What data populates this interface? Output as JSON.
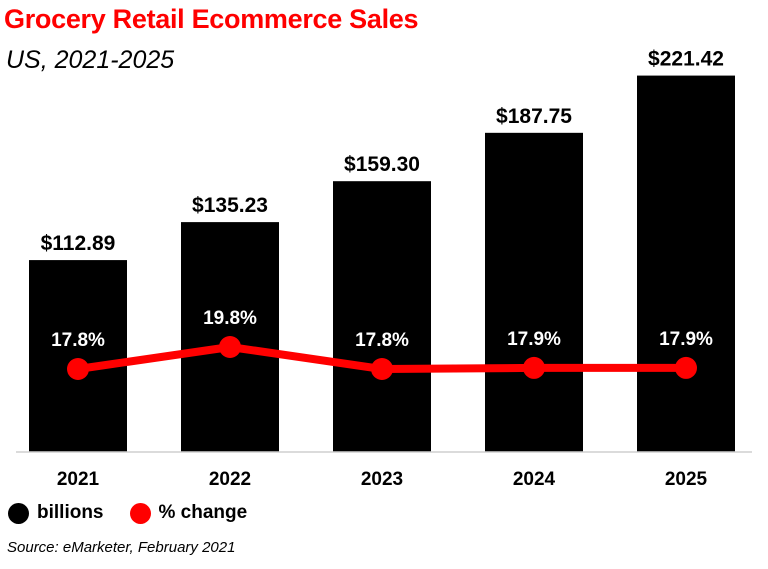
{
  "chart_data": {
    "type": "bar",
    "title": "Grocery Retail Ecommerce Sales",
    "subtitle": "US, 2021-2025",
    "categories": [
      "2021",
      "2022",
      "2023",
      "2024",
      "2025"
    ],
    "series": [
      {
        "name": "billions",
        "type": "bar",
        "values": [
          112.89,
          135.23,
          159.3,
          187.75,
          221.42
        ],
        "labels": [
          "$112.89",
          "$135.23",
          "$159.30",
          "$187.75",
          "$221.42"
        ],
        "color": "#000000"
      },
      {
        "name": "% change",
        "type": "line",
        "values": [
          17.8,
          19.8,
          17.8,
          17.9,
          17.9
        ],
        "labels": [
          "17.8%",
          "19.8%",
          "17.8%",
          "17.9%",
          "17.9%"
        ],
        "color": "#ff0000"
      }
    ],
    "ylim": [
      0,
      225
    ],
    "grid": false,
    "legend": "bottom-left",
    "source": "Source: eMarketer, February 2021"
  }
}
